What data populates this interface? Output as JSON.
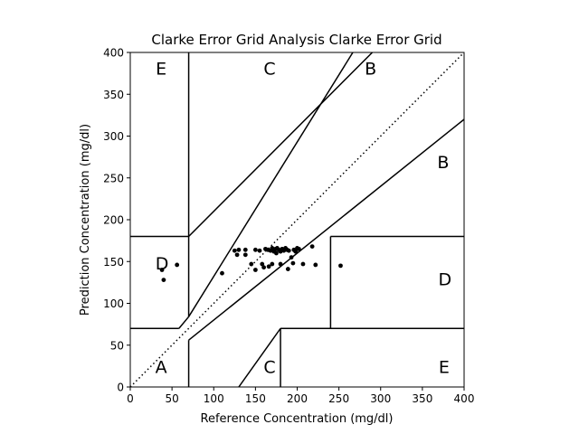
{
  "chart_data": {
    "type": "scatter",
    "title": "Clarke Error Grid Analysis Clarke Error Grid",
    "xlabel": "Reference Concentration (mg/dl)",
    "ylabel": "Prediction Concentration (mg/dl)",
    "xlim": [
      0,
      400
    ],
    "ylim": [
      0,
      400
    ],
    "xticks": [
      0,
      50,
      100,
      150,
      200,
      250,
      300,
      350,
      400
    ],
    "yticks": [
      0,
      50,
      100,
      150,
      200,
      250,
      300,
      350,
      400
    ],
    "grid": false,
    "zone_lines": [
      [
        [
          0,
          70
        ],
        [
          58.33,
          70
        ]
      ],
      [
        [
          70,
          84
        ],
        [
          70,
          400
        ]
      ],
      [
        [
          70,
          180
        ],
        [
          290,
          400
        ]
      ],
      [
        [
          70,
          56
        ],
        [
          70,
          0
        ]
      ],
      [
        [
          70,
          56
        ],
        [
          400,
          320
        ]
      ],
      [
        [
          130,
          0
        ],
        [
          180,
          70
        ]
      ],
      [
        [
          180,
          70
        ],
        [
          180,
          0
        ]
      ],
      [
        [
          180,
          70
        ],
        [
          400,
          70
        ]
      ],
      [
        [
          240,
          70
        ],
        [
          240,
          180
        ]
      ],
      [
        [
          240,
          180
        ],
        [
          400,
          180
        ]
      ],
      [
        [
          0,
          180
        ],
        [
          70,
          180
        ]
      ],
      [
        [
          58.33,
          70
        ],
        [
          70,
          84
        ]
      ],
      [
        [
          70,
          84
        ],
        [
          266.67,
          400
        ]
      ]
    ],
    "identity_line": [
      [
        0,
        0
      ],
      [
        400,
        400
      ]
    ],
    "zone_labels": [
      {
        "text": "A",
        "x": 37,
        "y": 23
      },
      {
        "text": "B",
        "x": 288,
        "y": 380
      },
      {
        "text": "B",
        "x": 375,
        "y": 268
      },
      {
        "text": "C",
        "x": 167,
        "y": 380
      },
      {
        "text": "C",
        "x": 167,
        "y": 23
      },
      {
        "text": "D",
        "x": 38,
        "y": 147
      },
      {
        "text": "D",
        "x": 377,
        "y": 128
      },
      {
        "text": "E",
        "x": 37,
        "y": 380
      },
      {
        "text": "E",
        "x": 376,
        "y": 23
      }
    ],
    "points": [
      [
        38,
        140
      ],
      [
        40,
        128
      ],
      [
        56,
        146
      ],
      [
        110,
        136
      ],
      [
        125,
        163
      ],
      [
        128,
        158
      ],
      [
        130,
        164
      ],
      [
        138,
        158
      ],
      [
        138,
        164
      ],
      [
        145,
        147
      ],
      [
        150,
        140
      ],
      [
        150,
        164
      ],
      [
        155,
        163
      ],
      [
        158,
        147
      ],
      [
        160,
        143
      ],
      [
        162,
        165
      ],
      [
        165,
        164
      ],
      [
        166,
        144
      ],
      [
        168,
        163
      ],
      [
        170,
        147
      ],
      [
        170,
        166
      ],
      [
        172,
        162
      ],
      [
        174,
        165
      ],
      [
        175,
        160
      ],
      [
        176,
        166
      ],
      [
        178,
        164
      ],
      [
        180,
        147
      ],
      [
        180,
        162
      ],
      [
        182,
        165
      ],
      [
        184,
        163
      ],
      [
        186,
        166
      ],
      [
        188,
        164
      ],
      [
        189,
        141
      ],
      [
        190,
        163
      ],
      [
        193,
        155
      ],
      [
        195,
        148
      ],
      [
        196,
        164
      ],
      [
        198,
        162
      ],
      [
        200,
        166
      ],
      [
        202,
        165
      ],
      [
        207,
        147
      ],
      [
        218,
        168
      ],
      [
        222,
        146
      ],
      [
        252,
        145
      ]
    ]
  }
}
